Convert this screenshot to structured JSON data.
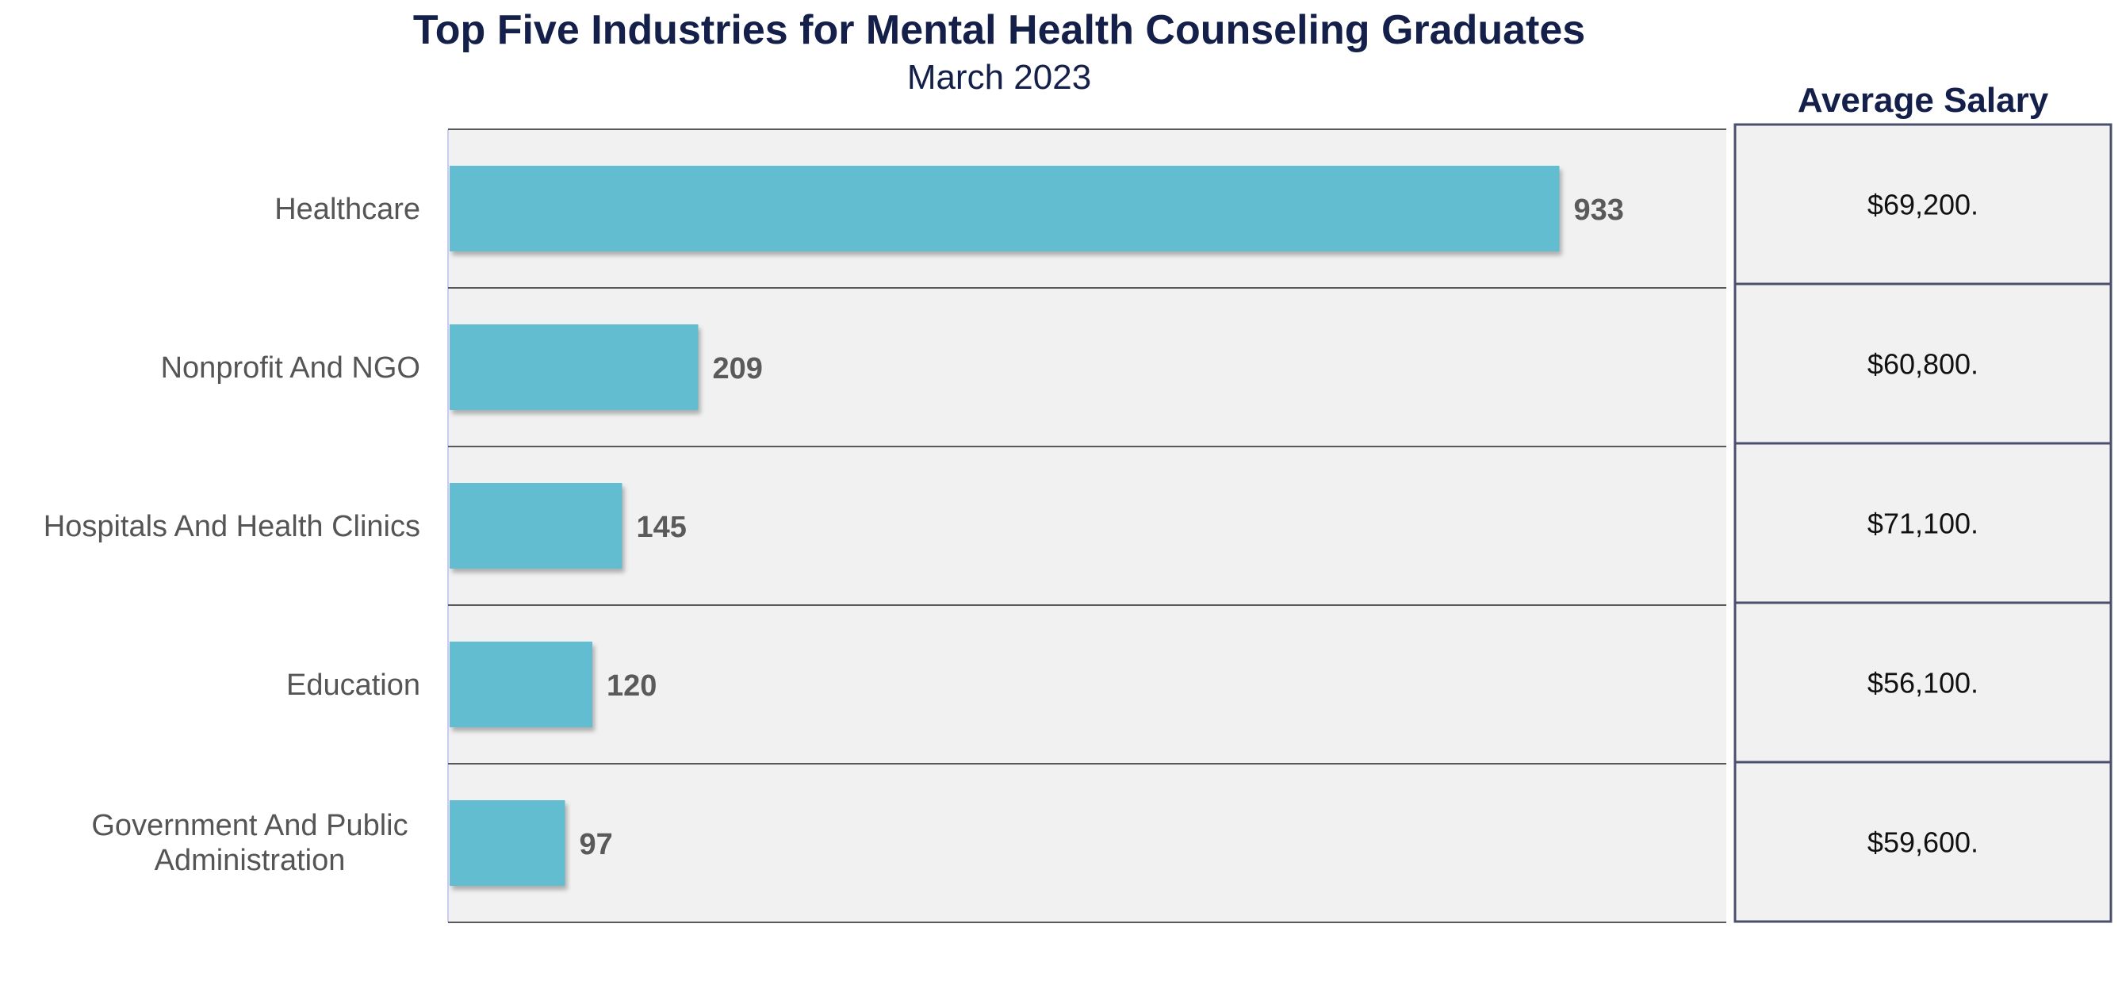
{
  "chart_data": {
    "type": "bar",
    "orientation": "horizontal",
    "title": "Top Five Industries for Mental Health Counseling Graduates",
    "subtitle": "March 2023",
    "categories": [
      "Healthcare",
      "Nonprofit And NGO",
      "Hospitals And Health Clinics",
      "Education",
      "Government And Public Administration"
    ],
    "values": [
      933,
      209,
      145,
      120,
      97
    ],
    "xlim": [
      0,
      1000
    ],
    "side_table": {
      "header": "Average Salary",
      "values": [
        "$69,200.",
        "$60,800.",
        "$71,100.",
        "$56,100.",
        "$59,600."
      ]
    },
    "legend": "none",
    "grid": false
  },
  "colors": {
    "bar": "#62bdd0",
    "panel": "#f1f1f1",
    "title": "#14204a",
    "border": "#4a4f6e"
  }
}
